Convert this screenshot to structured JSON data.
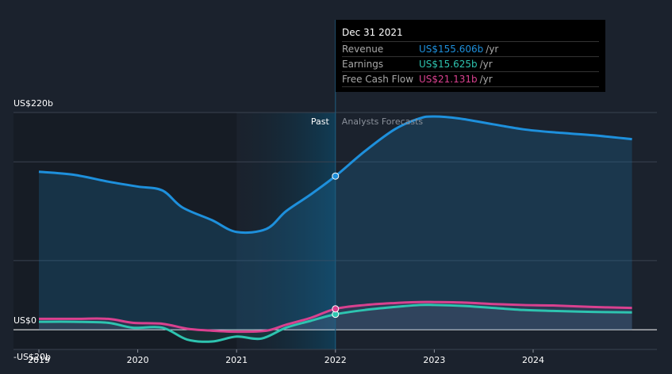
{
  "chart_data": {
    "type": "line",
    "y_axis_labels": [
      "US$220b",
      "US$0",
      "-US$20b"
    ],
    "ylim": [
      -20,
      220
    ],
    "x_ticks": [
      "2019",
      "2020",
      "2021",
      "2022",
      "2023",
      "2024"
    ],
    "x_tick_values": [
      2019,
      2020,
      2021,
      2022,
      2023,
      2024
    ],
    "past_label": "Past",
    "forecast_label": "Analysts Forecasts",
    "divider_x": 2022.0,
    "highlight_range": [
      2021.0,
      2022.0
    ],
    "series": [
      {
        "name": "Revenue",
        "color": "#1e90dc",
        "x": [
          2019.0,
          2019.35,
          2019.7,
          2020.0,
          2020.25,
          2020.45,
          2020.75,
          2021.0,
          2021.3,
          2021.5,
          2021.75,
          2022.0,
          2022.3,
          2022.6,
          2022.85,
          2023.0,
          2023.25,
          2023.6,
          2023.9,
          2024.2,
          2024.6,
          2025.0
        ],
        "values": [
          160,
          157,
          150,
          145,
          141,
          124,
          111,
          99,
          102,
          120,
          137,
          155.6,
          181,
          203,
          214,
          216,
          214,
          208,
          203,
          200,
          197,
          193
        ]
      },
      {
        "name": "Earnings",
        "color": "#2ec4b0",
        "x": [
          2019.0,
          2019.35,
          2019.7,
          2019.95,
          2020.25,
          2020.5,
          2020.75,
          2021.0,
          2021.25,
          2021.5,
          2021.75,
          2022.0,
          2022.3,
          2022.6,
          2022.85,
          2023.0,
          2023.3,
          2023.6,
          2023.9,
          2024.2,
          2024.6,
          2025.0
        ],
        "values": [
          8,
          8,
          7,
          2,
          2,
          -10,
          -12,
          -7,
          -9,
          2,
          9,
          15.6,
          20,
          23,
          25,
          25,
          24,
          22,
          20,
          19,
          18,
          17.5
        ]
      },
      {
        "name": "Free Cash Flow",
        "color": "#d9418f",
        "x": [
          2019.0,
          2019.35,
          2019.7,
          2019.95,
          2020.25,
          2020.5,
          2020.75,
          2021.0,
          2021.3,
          2021.5,
          2021.75,
          2022.0,
          2022.3,
          2022.6,
          2022.85,
          2023.0,
          2023.3,
          2023.6,
          2023.9,
          2024.2,
          2024.6,
          2025.0
        ],
        "values": [
          11,
          11,
          11,
          7,
          6,
          1,
          -1,
          -2,
          -1,
          5,
          12,
          21.1,
          25,
          27,
          28,
          28,
          27.5,
          26,
          25,
          24.5,
          23,
          22
        ]
      }
    ],
    "tooltip": {
      "date": "Dec 31 2021",
      "rows": [
        {
          "name": "Revenue",
          "value": "US$155.606b",
          "unit": "/yr",
          "color": "#1e90dc"
        },
        {
          "name": "Earnings",
          "value": "US$15.625b",
          "unit": "/yr",
          "color": "#2ec4b0"
        },
        {
          "name": "Free Cash Flow",
          "value": "US$21.131b",
          "unit": "/yr",
          "color": "#d9418f"
        }
      ]
    }
  }
}
